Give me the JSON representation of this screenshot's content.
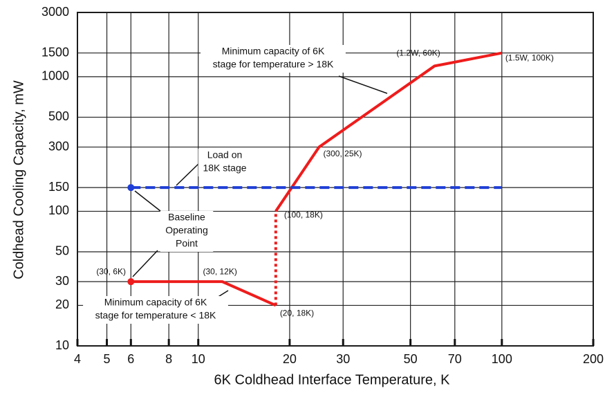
{
  "chart_data": {
    "type": "line",
    "xlabel": "6K Coldhead Interface Temperature,  K",
    "ylabel": "Coldhead Cooling Capacity,  mW",
    "xscale": "log",
    "yscale": "log",
    "grid": true,
    "xlim": [
      4,
      200
    ],
    "ylim": [
      10,
      3000
    ],
    "xticks": [
      4,
      5,
      6,
      8,
      10,
      20,
      30,
      50,
      70,
      100,
      200
    ],
    "yticks": [
      10,
      20,
      30,
      50,
      100,
      150,
      300,
      500,
      1000,
      1500,
      3000
    ],
    "series": [
      {
        "color": "#ee1c1c",
        "dash": "solid",
        "x": [
          18,
          25,
          60,
          100
        ],
        "values": [
          100,
          300,
          1200,
          1500
        ],
        "value_labels": [
          "(100, 18K)",
          "(300, 25K)",
          "(1.2W, 60K)",
          "(1.5W, 100K)"
        ]
      },
      {
        "color": "#ee1c1c",
        "dash": "dotted",
        "x": [
          18,
          18
        ],
        "values": [
          20,
          100
        ]
      },
      {
        "color": "#ee1c1c",
        "dash": "solid",
        "marker": true,
        "x": [
          6,
          12,
          18
        ],
        "values": [
          30,
          30,
          20
        ],
        "value_labels": [
          "(30, 6K)",
          "(30, 12K)",
          "(20, 18K)"
        ]
      },
      {
        "color": "#1f3fd6",
        "dash": "dashed",
        "marker": true,
        "x": [
          6,
          100
        ],
        "values": [
          150,
          150
        ]
      }
    ],
    "annotations": [
      {
        "lines": [
          "Minimum capacity of 6K",
          "stage for temperature > 18K"
        ]
      },
      {
        "lines": [
          "Load on",
          "18K stage"
        ]
      },
      {
        "lines": [
          "Baseline",
          "Operating",
          "Point"
        ]
      },
      {
        "lines": [
          "Minimum capacity of 6K",
          "stage for temperature < 18K"
        ]
      }
    ]
  }
}
